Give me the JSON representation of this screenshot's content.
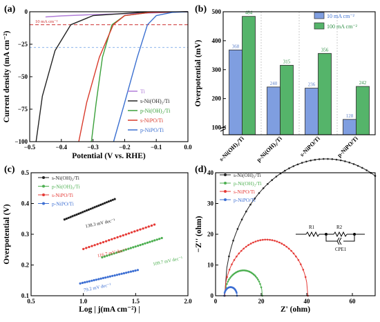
{
  "chart_data": [
    {
      "panel": "(a)",
      "type": "line",
      "xlabel": "Potential (V vs. RHE)",
      "ylabel": "Current density (mA cm⁻²)",
      "xlim": [
        -0.5,
        0.0
      ],
      "ylim": [
        -100,
        0
      ],
      "xticks": [
        "−0.5",
        "−0.4",
        "−0.3",
        "−0.2",
        "−0.1",
        "0.0"
      ],
      "yticks": [
        "0",
        "−25",
        "−50",
        "−75",
        "−100"
      ],
      "annotation": "10 mA cm⁻²",
      "series": [
        {
          "name": "Ti",
          "color": "#b07cd8",
          "x": [
            0.0,
            -0.1,
            -0.2,
            -0.3,
            -0.4,
            -0.45
          ],
          "y": [
            0,
            -0.8,
            -1.5,
            -2.2,
            -3.2,
            -4.0
          ]
        },
        {
          "name": "s-Ni(OH)₂/Ti",
          "color": "#222222",
          "x": [
            0.0,
            -0.15,
            -0.3,
            -0.37,
            -0.42,
            -0.46,
            -0.48
          ],
          "y": [
            0,
            -0.5,
            -3,
            -10,
            -30,
            -65,
            -100
          ]
        },
        {
          "name": "p-Ni(OH)₂/Ti",
          "color": "#3aa03a",
          "x": [
            0.0,
            -0.12,
            -0.2,
            -0.24,
            -0.27,
            -0.29,
            -0.305
          ],
          "y": [
            0,
            -0.5,
            -3,
            -10,
            -35,
            -70,
            -100
          ]
        },
        {
          "name": "s-NiPO/Ti",
          "color": "#d93a2b",
          "x": [
            0.0,
            -0.12,
            -0.2,
            -0.236,
            -0.28,
            -0.32,
            -0.345
          ],
          "y": [
            0,
            -0.5,
            -3,
            -10,
            -35,
            -70,
            -100
          ]
        },
        {
          "name": "p-NiPO/Ti",
          "color": "#3a6fd0",
          "x": [
            0.0,
            -0.05,
            -0.1,
            -0.128,
            -0.16,
            -0.2,
            -0.235
          ],
          "y": [
            0,
            -0.5,
            -3,
            -10,
            -35,
            -70,
            -100
          ]
        }
      ]
    },
    {
      "panel": "(b)",
      "type": "bar",
      "ylabel": "Overpotential (mV)",
      "ylim": [
        75,
        500
      ],
      "yticks": [
        "100",
        "200",
        "300",
        "400",
        "500"
      ],
      "categories": [
        "s-Ni(OH)₂/Ti",
        "p-Ni(OH)₂/Ti",
        "s-NiPO/Ti",
        "p-NiPO/Ti"
      ],
      "series": [
        {
          "name": "10 mA cm⁻²",
          "color": "#7f9ee0",
          "values": [
            368,
            240,
            236,
            128
          ]
        },
        {
          "name": "100 mA cm⁻²",
          "color": "#55b46a",
          "values": [
            484,
            315,
            356,
            242
          ]
        }
      ]
    },
    {
      "panel": "(c)",
      "type": "scatter",
      "xlabel": "Log | j(mA cm⁻²) |",
      "ylabel": "Overpotential (V)",
      "xlim": [
        0.5,
        2.0
      ],
      "ylim": [
        0.1,
        0.5
      ],
      "xticks": [
        "0.5",
        "1.0",
        "1.5",
        "2.0"
      ],
      "yticks": [
        "0.1",
        "0.2",
        "0.3",
        "0.4",
        "0.5"
      ],
      "series": [
        {
          "name": "s-Ni(OH)₂/Ti",
          "color": "#222222",
          "x_range": [
            0.82,
            1.3
          ],
          "slope_V_per_dec": 0.1383,
          "y_start": 0.348,
          "label": "138.3 mV dec⁻¹"
        },
        {
          "name": "p-Ni(OH)₂/Ti",
          "color": "#4caf50",
          "x_range": [
            1.18,
            1.75
          ],
          "slope_V_per_dec": 0.1097,
          "y_start": 0.225,
          "label": "109.7 mV dec⁻¹"
        },
        {
          "name": "s-NiPO/Ti",
          "color": "#e53935",
          "x_range": [
            1.0,
            1.68
          ],
          "slope_V_per_dec": 0.1167,
          "y_start": 0.252,
          "label": "116.7 mV dec⁻¹"
        },
        {
          "name": "p-NiPO/Ti",
          "color": "#3d6fd3",
          "x_range": [
            0.97,
            1.52
          ],
          "slope_V_per_dec": 0.0792,
          "y_start": 0.14,
          "label": "79.2 mV dec⁻¹"
        }
      ]
    },
    {
      "panel": "(d)",
      "type": "scatter",
      "xlabel": "Z' (ohm)",
      "ylabel": "−Z'' (ohm)",
      "xlim": [
        0,
        70
      ],
      "ylim": [
        0,
        40
      ],
      "xticks": [
        "0",
        "20",
        "40",
        "60"
      ],
      "yticks": [
        "0",
        "10",
        "20",
        "30",
        "40"
      ],
      "circuit_labels": [
        "R1",
        "R2",
        "CPE1"
      ],
      "series": [
        {
          "name": "s-Ni(OH)₂/Ti",
          "color": "#222222",
          "x0": 4.0,
          "diameter": 89,
          "xmax": 70
        },
        {
          "name": "p-Ni(OH)₂/Ti",
          "color": "#4caf50",
          "x0": 4.0,
          "diameter": 16.5
        },
        {
          "name": "s-NiPO/Ti",
          "color": "#e53935",
          "x0": 4.0,
          "diameter": 36.5
        },
        {
          "name": "p-NiPO/Ti",
          "color": "#3d6fd3",
          "x0": 3.8,
          "diameter": 5.6
        }
      ]
    }
  ]
}
